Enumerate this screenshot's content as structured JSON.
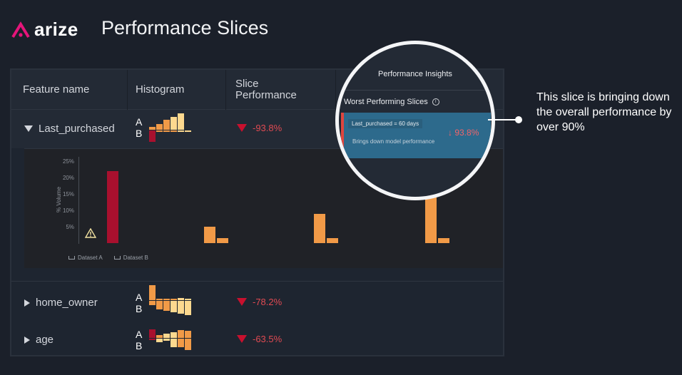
{
  "header": {
    "logo_text": "arize",
    "page_title": "Performance Slices"
  },
  "colors": {
    "accent": "#e5157a",
    "negative": "#c8102e",
    "bar_dark_red": "#a8102e",
    "bar_orange": "#f19a47",
    "bar_light": "#fcd98f",
    "card_blue": "#2d6a8c"
  },
  "table": {
    "columns": [
      "Feature name",
      "Histogram",
      "Slice Performance"
    ],
    "rows": [
      {
        "feature": "Last_purchased",
        "expanded": true,
        "label_a": "A",
        "label_b": "B",
        "performance": "-93.8%"
      },
      {
        "feature": "home_owner",
        "expanded": false,
        "label_a": "A",
        "label_b": "B",
        "performance": "-78.2%"
      },
      {
        "feature": "age",
        "expanded": false,
        "label_a": "A",
        "label_b": "B",
        "performance": "-63.5%"
      }
    ]
  },
  "chart_data": {
    "type": "bar",
    "ylabel": "% Volume",
    "yticks": [
      "25%",
      "20%",
      "15%",
      "10%",
      "5%"
    ],
    "ylim": [
      0,
      25
    ],
    "legend": [
      "Dataset A",
      "Dataset B"
    ],
    "legend_position": "bottom-left",
    "warning_icon": "warning-icon",
    "groups": [
      {
        "bars": [
          {
            "value": 22,
            "color": "#a8102e"
          }
        ]
      },
      {
        "bars": [
          {
            "value": 5,
            "color": "#f19a47"
          },
          {
            "value": 1.5,
            "color": "#f19a47"
          }
        ]
      },
      {
        "bars": [
          {
            "value": 9,
            "color": "#f19a47"
          },
          {
            "value": 1.5,
            "color": "#f19a47"
          }
        ]
      },
      {
        "bars": [
          {
            "value": 14,
            "color": "#f19a47"
          },
          {
            "value": 1.5,
            "color": "#f19a47"
          }
        ]
      }
    ]
  },
  "insights": {
    "title": "Performance Insights",
    "subtitle": "Worst Performing Slices",
    "info_icon": "info-icon",
    "slice_tag": "Last_purchased = 60 days",
    "slice_desc": "Brings down model performance",
    "slice_value": "↓ 93.8%"
  },
  "callout": {
    "text": "This slice is bringing down the overall performance by over 90%"
  }
}
